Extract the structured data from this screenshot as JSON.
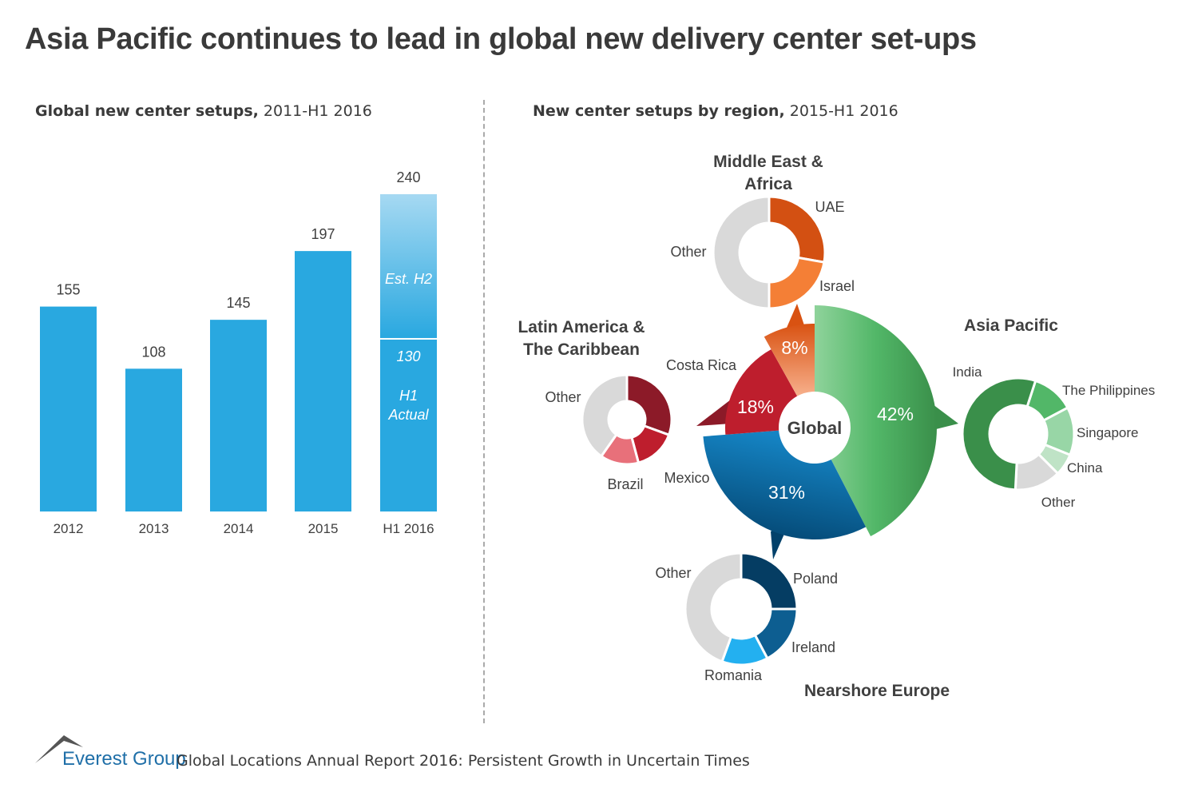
{
  "title": "Asia Pacific continues to lead in global new delivery center set-ups",
  "footer": {
    "logo_text": "Everest Group",
    "report": "Global Locations Annual Report 2016: Persistent Growth in Uncertain Times"
  },
  "chart_data": [
    {
      "type": "bar",
      "title_bold": "Global new center setups,",
      "title_rest": " 2011-H1 2016",
      "categories": [
        "2012",
        "2013",
        "2014",
        "2015",
        "H1 2016"
      ],
      "values": [
        155,
        108,
        145,
        197,
        240
      ],
      "value_labels": [
        "155",
        "108",
        "145",
        "197",
        "240"
      ],
      "stacked_last": {
        "actual": 130,
        "actual_label": "130",
        "actual_text_1": "H1",
        "actual_text_2": "Actual",
        "estimate_label": "Est. H2"
      },
      "ylim": [
        0,
        240
      ],
      "colors": {
        "bar": "#29a8e0",
        "estimate_top": "#a6d9f2"
      }
    },
    {
      "type": "pie",
      "title_bold": "New center setups by region,",
      "title_rest": " 2015-H1 2016",
      "center_label": "Global",
      "slices": [
        {
          "name": "Asia Pacific",
          "value": 42,
          "label": "42%",
          "color": "#4cb05e"
        },
        {
          "name": "Nearshore Europe",
          "value": 31,
          "label": "31%",
          "color": "#0d6aa5"
        },
        {
          "name": "Latin America & The Caribbean",
          "value": 18,
          "label": "18%",
          "color": "#be1e2d"
        },
        {
          "name": "Middle East & Africa",
          "value": 8,
          "label": "8%",
          "color": "#e8641b"
        }
      ],
      "regions": [
        {
          "title_1": "Middle East &",
          "title_2": "Africa",
          "segments": [
            {
              "name": "UAE",
              "deg": 100,
              "color": "#d35012"
            },
            {
              "name": "Israel",
              "deg": 80,
              "color": "#f47f36"
            },
            {
              "name": "Other",
              "deg": 180,
              "color": "#d9d9d9"
            }
          ]
        },
        {
          "title_1": "Latin America &",
          "title_2": "The Caribbean",
          "segments": [
            {
              "name": "Costa Rica",
              "deg": 110,
              "color": "#8c1a28"
            },
            {
              "name": "Mexico",
              "deg": 55,
              "color": "#be1e2d"
            },
            {
              "name": "Brazil",
              "deg": 50,
              "color": "#e8707a"
            },
            {
              "name": "Other",
              "deg": 145,
              "color": "#d9d9d9"
            }
          ]
        },
        {
          "title_1": "Asia Pacific",
          "title_2": "",
          "segments": [
            {
              "name": "The Philippines",
              "deg": 44,
              "color": "#52b768"
            },
            {
              "name": "Singapore",
              "deg": 50,
              "color": "#98d6a6"
            },
            {
              "name": "China",
              "deg": 23,
              "color": "#bfe3c6"
            },
            {
              "name": "Other",
              "deg": 48,
              "color": "#d9d9d9"
            },
            {
              "name": "India",
              "deg": 195,
              "color": "#3a8f4a"
            }
          ]
        },
        {
          "title_1": "Nearshore Europe",
          "title_2": "",
          "segments": [
            {
              "name": "Poland",
              "deg": 90,
              "color": "#053d63"
            },
            {
              "name": "Ireland",
              "deg": 62,
              "color": "#0d5e91"
            },
            {
              "name": "Romania",
              "deg": 48,
              "color": "#23b0f0"
            },
            {
              "name": "Other",
              "deg": 160,
              "color": "#d9d9d9"
            }
          ]
        }
      ]
    }
  ]
}
